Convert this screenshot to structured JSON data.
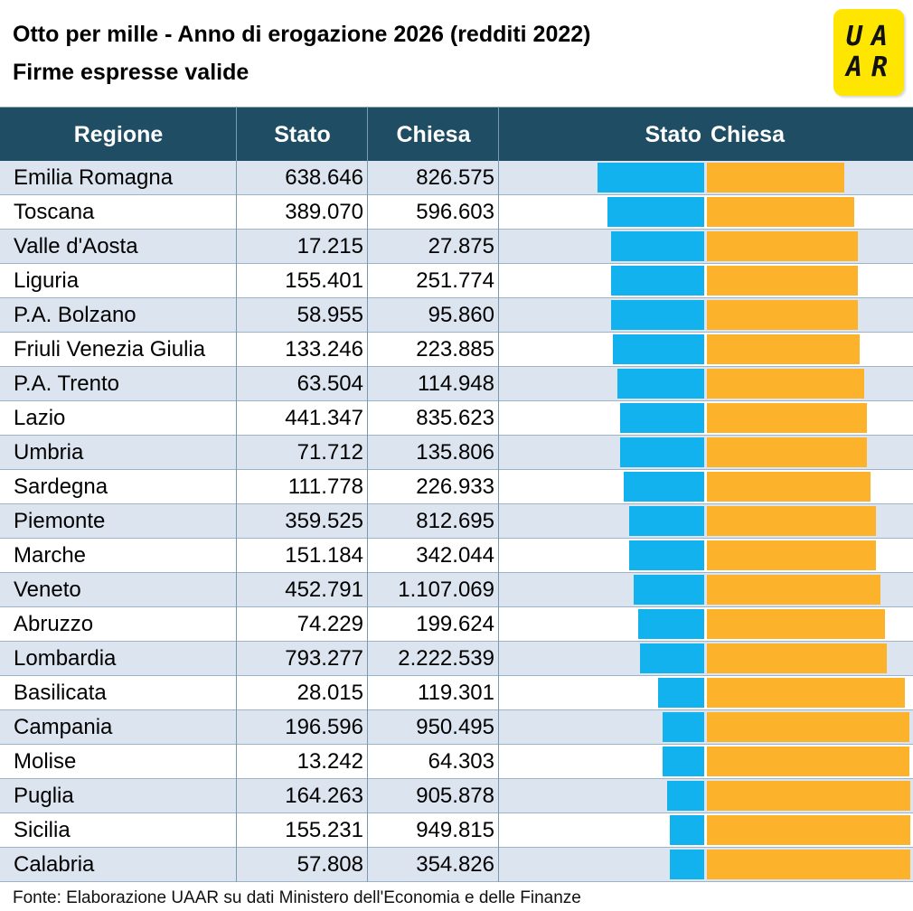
{
  "header": {
    "title_line1": "Otto per mille - Anno di erogazione 2026 (redditi 2022)",
    "title_line2": "Firme espresse valide",
    "logo_text": [
      "U",
      "A",
      "A",
      "R"
    ]
  },
  "table": {
    "columns": {
      "region": "Regione",
      "stato": "Stato",
      "chiesa": "Chiesa"
    },
    "chart_headers": {
      "stato": "Stato",
      "chiesa": "Chiesa"
    }
  },
  "chart_data": {
    "type": "bar",
    "title": "",
    "categories": [
      "Emilia Romagna",
      "Toscana",
      "Valle d'Aosta",
      "Liguria",
      "P.A. Bolzano",
      "Friuli Venezia Giulia",
      "P.A. Trento",
      "Lazio",
      "Umbria",
      "Sardegna",
      "Piemonte",
      "Marche",
      "Veneto",
      "Abruzzo",
      "Lombardia",
      "Basilicata",
      "Campania",
      "Molise",
      "Puglia",
      "Sicilia",
      "Calabria"
    ],
    "series": [
      {
        "name": "Stato",
        "color": "#12b2ee",
        "values": [
          "638.646",
          "389.070",
          "17.215",
          "155.401",
          "58.955",
          "133.246",
          "63.504",
          "441.347",
          "71.712",
          "111.778",
          "359.525",
          "151.184",
          "452.791",
          "74.229",
          "793.277",
          "28.015",
          "196.596",
          "13.242",
          "164.263",
          "155.231",
          "57.808"
        ]
      },
      {
        "name": "Chiesa",
        "color": "#fdb22b",
        "values": [
          "826.575",
          "596.603",
          "27.875",
          "251.774",
          "95.860",
          "223.885",
          "114.948",
          "835.623",
          "135.806",
          "226.933",
          "812.695",
          "342.044",
          "1.107.069",
          "199.624",
          "2.222.539",
          "119.301",
          "950.495",
          "64.303",
          "905.878",
          "949.815",
          "354.826"
        ]
      }
    ],
    "bar_encoding": "share of signatures per region (Stato vs Chiesa)",
    "colors": {
      "stato": "#12b2ee",
      "chiesa": "#fdb22b",
      "header": "#1f4e64",
      "row_alt": "#dce4ef"
    }
  },
  "footer": {
    "source": "Fonte: Elaborazione UAAR su dati Ministero dell'Economia e delle Finanze"
  }
}
